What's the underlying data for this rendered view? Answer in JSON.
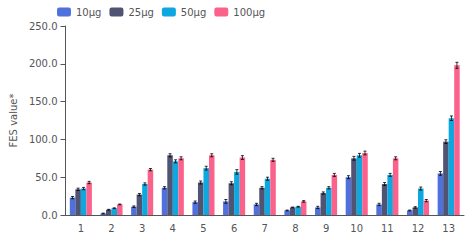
{
  "chart_data": {
    "type": "bar",
    "categories": [
      "1",
      "2",
      "3",
      "4",
      "5",
      "6",
      "7",
      "8",
      "9",
      "10",
      "11",
      "12",
      "13"
    ],
    "series": [
      {
        "name": "10μg",
        "values": [
          23,
          2,
          11,
          36,
          17,
          18,
          14,
          6,
          10,
          50,
          14,
          6,
          55
        ],
        "errors": [
          1.5,
          0.5,
          1.0,
          1.5,
          1.5,
          2.5,
          1.5,
          0.5,
          1.5,
          2.0,
          1.5,
          0.5,
          2.5
        ]
      },
      {
        "name": "25μg",
        "values": [
          34,
          7,
          27,
          79,
          43,
          42,
          36,
          10,
          29,
          75,
          41,
          10,
          97
        ],
        "errors": [
          1.5,
          0.5,
          1.5,
          2.0,
          2.0,
          2.0,
          1.5,
          0.5,
          1.5,
          2.5,
          2.0,
          1.0,
          2.5
        ]
      },
      {
        "name": "50μg",
        "values": [
          35,
          9,
          41,
          71,
          62,
          57,
          48,
          11,
          36,
          79,
          53,
          35,
          128
        ],
        "errors": [
          1.5,
          0.5,
          1.5,
          2.0,
          2.5,
          3.0,
          2.0,
          0.5,
          1.5,
          2.5,
          2.0,
          2.0,
          3.0
        ]
      },
      {
        "name": "100μg",
        "values": [
          43,
          14,
          60,
          75,
          79,
          76,
          73,
          18,
          53,
          82,
          75,
          19,
          198
        ],
        "errors": [
          1.5,
          0.5,
          1.5,
          2.0,
          2.0,
          2.5,
          2.0,
          1.0,
          2.0,
          2.5,
          2.0,
          1.5,
          4.0
        ]
      }
    ],
    "ylabel": "FES value*",
    "ylim": [
      0,
      250
    ],
    "yticks": [
      {
        "value": 0,
        "label": "0.0"
      },
      {
        "value": 50,
        "label": "50.0"
      },
      {
        "value": 100,
        "label": "100.0"
      },
      {
        "value": 150,
        "label": "150.0"
      },
      {
        "value": 200,
        "label": "200.0"
      },
      {
        "value": 250,
        "label": "250.0"
      }
    ],
    "grid": false,
    "legend": "upper left"
  }
}
